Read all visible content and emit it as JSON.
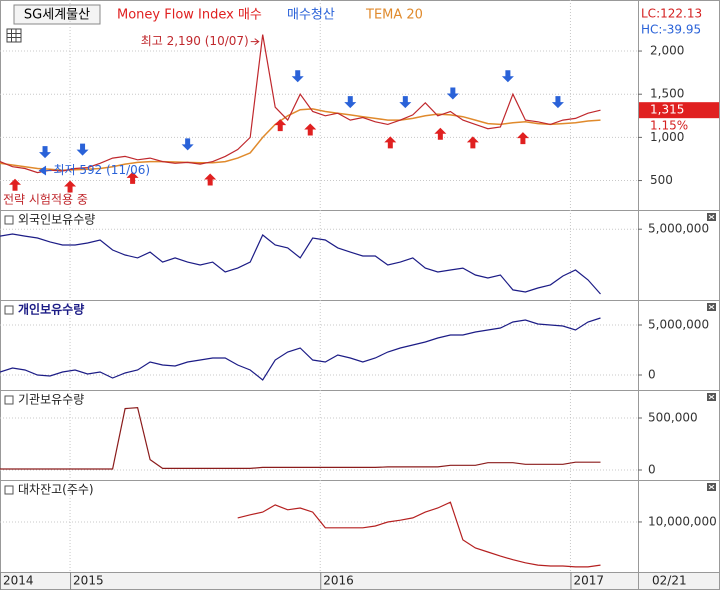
{
  "chart_data": [
    {
      "type": "line",
      "title": "SG세계물산",
      "color": "#c0282d",
      "x": [
        2014.72,
        2014.77,
        2014.82,
        2014.87,
        2014.92,
        2014.97,
        2015.02,
        2015.07,
        2015.12,
        2015.17,
        2015.22,
        2015.27,
        2015.32,
        2015.37,
        2015.42,
        2015.47,
        2015.52,
        2015.57,
        2015.62,
        2015.67,
        2015.72,
        2015.77,
        2015.82,
        2015.87,
        2015.92,
        2015.97,
        2016.02,
        2016.07,
        2016.12,
        2016.17,
        2016.22,
        2016.27,
        2016.32,
        2016.37,
        2016.42,
        2016.47,
        2016.52,
        2016.57,
        2016.62,
        2016.67,
        2016.72,
        2016.77,
        2016.82,
        2016.87,
        2016.92,
        2016.97,
        2017.02,
        2017.07,
        2017.12
      ],
      "values": [
        720,
        660,
        640,
        592,
        620,
        610,
        640,
        650,
        700,
        760,
        780,
        740,
        760,
        720,
        700,
        710,
        690,
        720,
        780,
        860,
        1000,
        2190,
        1350,
        1200,
        1500,
        1300,
        1250,
        1280,
        1200,
        1230,
        1180,
        1150,
        1200,
        1260,
        1400,
        1250,
        1300,
        1200,
        1150,
        1100,
        1120,
        1500,
        1200,
        1180,
        1150,
        1200,
        1220,
        1280,
        1315
      ],
      "series": [
        {
          "name": "TEMA 20",
          "color": "#e08a2c",
          "values": [
            700,
            680,
            660,
            640,
            630,
            620,
            625,
            630,
            640,
            660,
            690,
            710,
            720,
            720,
            715,
            710,
            705,
            705,
            720,
            760,
            820,
            1000,
            1150,
            1250,
            1320,
            1330,
            1300,
            1280,
            1260,
            1240,
            1220,
            1200,
            1200,
            1220,
            1250,
            1270,
            1260,
            1240,
            1200,
            1160,
            1150,
            1170,
            1180,
            1160,
            1150,
            1160,
            1170,
            1190,
            1200
          ]
        }
      ],
      "buy_signals": {
        "name": "Money Flow Index 매수",
        "color": "#e02020",
        "x": [
          2014.78,
          2015.0,
          2015.25,
          2015.56,
          2015.84,
          2015.96,
          2016.28,
          2016.48,
          2016.61,
          2016.81
        ]
      },
      "sell_signals": {
        "name": "매수청산",
        "color": "#2a62d8",
        "x": [
          2014.9,
          2015.05,
          2015.47,
          2015.91,
          2016.12,
          2016.34,
          2016.53,
          2016.75,
          2016.95
        ]
      },
      "xlim": [
        2014.72,
        2017.27
      ],
      "xticks": [
        {
          "value": 2014.72,
          "label": "2014"
        },
        2015,
        2016,
        2017
      ],
      "last_date_label": "02/21",
      "ylim": [
        182,
        2568
      ],
      "yticks": [
        {
          "value": 2000,
          "label": "2,000"
        },
        {
          "value": 1500,
          "label": "1,500"
        },
        {
          "value": 1000,
          "label": "1,000"
        },
        500
      ],
      "grid": true,
      "lc_label": "LC:122.13",
      "hc_label": "HC:-39.95",
      "last_value": 1315,
      "last_value_label": "1,315",
      "change_label": "1.15%",
      "high_label": "최고 2,190 (10/07)",
      "low_label": "최저 592 (11/06)",
      "note": "전략 시험적용 중"
    },
    {
      "type": "line",
      "title": "외국인보유수량",
      "color": "#1c1c86",
      "values": [
        4600000,
        4720000,
        4600000,
        4490000,
        4260000,
        4080000,
        4080000,
        4200000,
        4370000,
        3790000,
        3500000,
        3330000,
        3670000,
        3090000,
        3330000,
        3090000,
        2920000,
        3090000,
        2510000,
        2740000,
        3090000,
        4660000,
        4080000,
        3910000,
        3330000,
        4490000,
        4370000,
        3910000,
        3670000,
        3440000,
        3440000,
        2920000,
        3090000,
        3330000,
        2740000,
        2510000,
        2630000,
        2740000,
        2340000,
        2160000,
        2340000,
        1470000,
        1350000,
        1580000,
        1760000,
        2280000,
        2630000,
        2050000,
        1230000
      ],
      "ylim": [
        1000000,
        6000000
      ],
      "yticks": [
        {
          "value": 5000000,
          "label": "5,000,000"
        }
      ],
      "grid": true
    },
    {
      "type": "line",
      "title": "개인보유수량",
      "color": "#1c1c86",
      "values": [
        300000,
        700000,
        500000,
        0,
        -100000,
        300000,
        500000,
        100000,
        300000,
        -300000,
        200000,
        500000,
        1300000,
        1000000,
        900000,
        1300000,
        1500000,
        1700000,
        1700000,
        1000000,
        500000,
        -500000,
        1500000,
        2300000,
        2700000,
        1500000,
        1300000,
        2000000,
        1700000,
        1300000,
        1700000,
        2300000,
        2700000,
        3000000,
        3300000,
        3700000,
        4000000,
        4000000,
        4300000,
        4500000,
        4700000,
        5300000,
        5500000,
        5100000,
        5000000,
        4900000,
        4500000,
        5300000,
        5700000
      ],
      "ylim": [
        -1300000,
        7300000
      ],
      "yticks": [
        {
          "value": 5000000,
          "label": "5,000,000"
        },
        0
      ],
      "grid": true
    },
    {
      "type": "line",
      "title": "기관보유수량",
      "color": "#8b1c1c",
      "values": [
        10000,
        10000,
        10000,
        10000,
        10000,
        10000,
        10000,
        10000,
        10000,
        10000,
        590000,
        600000,
        100000,
        15000,
        15000,
        15000,
        15000,
        15000,
        15000,
        15000,
        15000,
        25000,
        25000,
        25000,
        25000,
        25000,
        25000,
        25000,
        25000,
        25000,
        25000,
        30000,
        30000,
        30000,
        30000,
        30000,
        45000,
        45000,
        45000,
        70000,
        70000,
        70000,
        55000,
        55000,
        55000,
        55000,
        75000,
        75000,
        75000
      ],
      "ylim": [
        -77000,
        750000
      ],
      "yticks": [
        {
          "value": 500000,
          "label": "500,000"
        },
        0
      ],
      "grid": true
    },
    {
      "type": "line",
      "title": "대차잔고(주수)",
      "color": "#b52020",
      "values": [
        null,
        null,
        null,
        null,
        null,
        null,
        null,
        null,
        null,
        null,
        null,
        null,
        null,
        null,
        null,
        null,
        null,
        null,
        null,
        10900000,
        11600000,
        12200000,
        13800000,
        12700000,
        13100000,
        12200000,
        8700000,
        8700000,
        8700000,
        8700000,
        9100000,
        10000000,
        10400000,
        10900000,
        12200000,
        13100000,
        14400000,
        6000000,
        4200000,
        3300000,
        2400000,
        1600000,
        900000,
        400000,
        200000,
        200000,
        0,
        0,
        400000
      ],
      "ylim": [
        -700000,
        18900000
      ],
      "yticks": [
        {
          "value": 10000000,
          "label": "10,000,000"
        }
      ],
      "grid": true
    }
  ]
}
